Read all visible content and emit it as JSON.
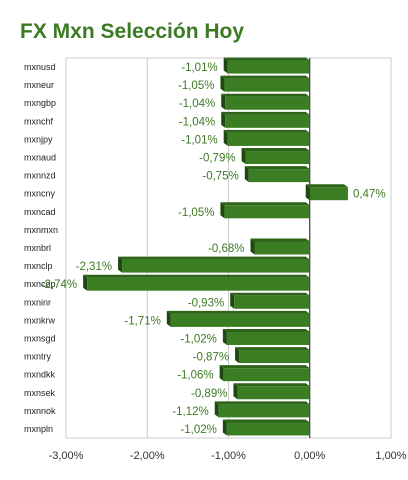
{
  "chart_data": {
    "type": "bar",
    "orientation": "horizontal",
    "title": "FX Mxn Selección Hoy",
    "categories": [
      "mxnusd",
      "mxneur",
      "mxngbp",
      "mxnchf",
      "mxnjpy",
      "mxnaud",
      "mxnnzd",
      "mxncny",
      "mxncad",
      "mxnmxn",
      "mxnbrl",
      "mxnclp",
      "mxncop",
      "mxninr",
      "mxnkrw",
      "mxnsgd",
      "mxntry",
      "mxndkk",
      "mxnsek",
      "mxnnok",
      "mxnpln"
    ],
    "values": [
      -1.01,
      -1.05,
      -1.04,
      -1.04,
      -1.01,
      -0.79,
      -0.75,
      0.47,
      -1.05,
      null,
      -0.68,
      -2.31,
      -2.74,
      -0.93,
      -1.71,
      -1.02,
      -0.87,
      -1.06,
      -0.89,
      -1.12,
      -1.02
    ],
    "value_labels": [
      "-1,01%",
      "-1,05%",
      "-1,04%",
      "-1,04%",
      "-1,01%",
      "-0,79%",
      "-0,75%",
      "0,47%",
      "-1,05%",
      "",
      "-0,68%",
      "-2,31%",
      "-2,74%",
      "-0,93%",
      "-1,71%",
      "-1,02%",
      "-0,87%",
      "-1,06%",
      "-0,89%",
      "-1,12%",
      "-1,02%"
    ],
    "xlim": [
      -3.0,
      1.0
    ],
    "xticks": [
      -3,
      -2,
      -1,
      0,
      1
    ],
    "xtick_labels": [
      "-3,00%",
      "-2,00%",
      "-1,00%",
      "0,00%",
      "1,00%"
    ],
    "grid": true,
    "legend": "none",
    "colors": {
      "bar_front": "#3a7d22",
      "bar_top": "#2d6418",
      "bar_side": "#1d4810",
      "text": "#3c7b22",
      "grid": "#cccccc"
    }
  }
}
